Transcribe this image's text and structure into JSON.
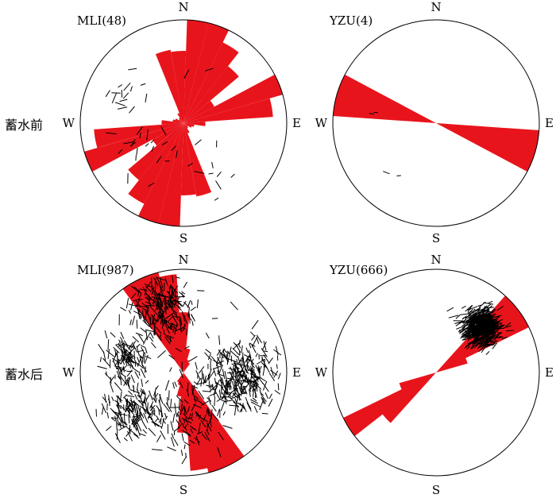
{
  "row_labels": [
    "蓄水前",
    "蓄水后"
  ],
  "cardinals": {
    "n": "N",
    "s": "S",
    "w": "W",
    "e": "E"
  },
  "colors": {
    "rose": "#e8141c",
    "stroke": "#000000",
    "background": "#ffffff"
  },
  "panels": [
    {
      "title": "MLI(48)",
      "rose_azimuths_deg": [
        -16,
        -4,
        8,
        20,
        32,
        44,
        56,
        68,
        80,
        92,
        104,
        116,
        128,
        140,
        152,
        164,
        176,
        188,
        200,
        212,
        224,
        236,
        248,
        260,
        272,
        284,
        296,
        308,
        320,
        332,
        344,
        356
      ],
      "rose_relative_lengths": [
        0.68,
        0.66,
        0.98,
        1.0,
        0.82,
        0.66,
        0.32,
        0.95,
        0.82,
        0.2,
        0.1,
        0.08,
        0.05,
        0.06,
        0.1,
        0.68,
        0.66,
        0.98,
        1.0,
        0.82,
        0.66,
        0.32,
        0.95,
        0.82,
        0.2,
        0.1,
        0.08,
        0.05,
        0.06,
        0.1,
        0.14,
        0.3
      ],
      "segment_count": 48,
      "segment_clusters": [
        {
          "azimuth_deg": 300,
          "radius_frac": 0.62,
          "spread_frac": 0.18,
          "weight": 0.35
        },
        {
          "azimuth_deg": 235,
          "radius_frac": 0.45,
          "spread_frac": 0.25,
          "weight": 0.35
        },
        {
          "azimuth_deg": 10,
          "radius_frac": 0.5,
          "spread_frac": 0.2,
          "weight": 0.15
        },
        {
          "azimuth_deg": 150,
          "radius_frac": 0.55,
          "spread_frac": 0.2,
          "weight": 0.15
        }
      ],
      "segment_orientation_deg": 40,
      "segment_orientation_spread_deg": 60
    },
    {
      "title": "YZU(4)",
      "rose_azimuths_deg": [
        106,
        286
      ],
      "rose_relative_lengths": [
        0.96,
        0.96
      ],
      "rose_bin_width_deg": 24,
      "segment_count": 4,
      "segment_clusters": [
        {
          "azimuth_deg": 282,
          "radius_frac": 0.6,
          "spread_frac": 0.05,
          "weight": 0.5
        },
        {
          "azimuth_deg": 210,
          "radius_frac": 0.7,
          "spread_frac": 0.15,
          "weight": 0.5
        }
      ],
      "segment_orientation_deg": 95,
      "segment_orientation_spread_deg": 20
    },
    {
      "title": "MLI(987)",
      "rose_azimuths_deg": [
        -30,
        -20,
        -10,
        0,
        10,
        20,
        30,
        150,
        160,
        170,
        180,
        190,
        200,
        210
      ],
      "rose_relative_lengths": [
        1.0,
        0.98,
        0.9,
        0.55,
        0.22,
        0.12,
        0.1,
        1.0,
        0.98,
        0.9,
        0.55,
        0.22,
        0.12,
        0.1
      ],
      "segment_count": 987,
      "segment_clusters": [
        {
          "azimuth_deg": 95,
          "radius_frac": 0.55,
          "spread_frac": 0.28,
          "weight": 0.32
        },
        {
          "azimuth_deg": 235,
          "radius_frac": 0.6,
          "spread_frac": 0.22,
          "weight": 0.2
        },
        {
          "azimuth_deg": 340,
          "radius_frac": 0.65,
          "spread_frac": 0.25,
          "weight": 0.24
        },
        {
          "azimuth_deg": 285,
          "radius_frac": 0.58,
          "spread_frac": 0.18,
          "weight": 0.12
        },
        {
          "azimuth_deg": 170,
          "radius_frac": 0.4,
          "spread_frac": 0.3,
          "weight": 0.12
        }
      ],
      "segment_orientation_deg": 165,
      "segment_orientation_spread_deg": 70
    },
    {
      "title": "YZU(666)",
      "rose_azimuths_deg": [
        48,
        58,
        68,
        228,
        238,
        248
      ],
      "rose_relative_lengths": [
        0.95,
        0.98,
        0.3,
        0.62,
        0.98,
        0.35
      ],
      "segment_count": 666,
      "segment_clusters": [
        {
          "azimuth_deg": 45,
          "radius_frac": 0.62,
          "spread_frac": 0.14,
          "weight": 1.0
        }
      ],
      "segment_orientation_deg": 60,
      "segment_orientation_spread_deg": 30
    }
  ]
}
